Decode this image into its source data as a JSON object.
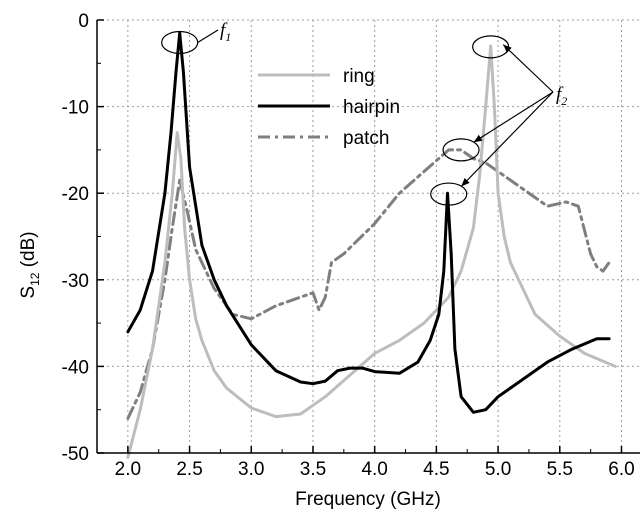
{
  "chart_data": {
    "type": "line",
    "xlabel": "Frequency (GHz)",
    "ylabel_main": "S",
    "ylabel_sub": "12",
    "ylabel_unit": " (dB)",
    "xlim": [
      1.75,
      6.15
    ],
    "ylim": [
      -50,
      0
    ],
    "x_ticks": [
      "2.0",
      "2.5",
      "3.0",
      "3.5",
      "4.0",
      "4.5",
      "5.0",
      "5.5",
      "6.0"
    ],
    "x_tick_values": [
      2.0,
      2.5,
      3.0,
      3.5,
      4.0,
      4.5,
      5.0,
      5.5,
      6.0
    ],
    "y_ticks": [
      "0",
      "-10",
      "-20",
      "-30",
      "-40",
      "-50"
    ],
    "y_tick_values": [
      0,
      -10,
      -20,
      -30,
      -40,
      -50
    ],
    "grid": true,
    "legend_position": "top-center",
    "series": [
      {
        "name": "ring",
        "color": "#bdbdbd",
        "style": "solid",
        "x": [
          2.0,
          2.1,
          2.2,
          2.3,
          2.36,
          2.4,
          2.43,
          2.46,
          2.5,
          2.55,
          2.6,
          2.7,
          2.8,
          3.0,
          3.2,
          3.4,
          3.6,
          3.8,
          4.0,
          4.2,
          4.4,
          4.6,
          4.7,
          4.8,
          4.85,
          4.9,
          4.94,
          4.97,
          5.0,
          5.05,
          5.1,
          5.2,
          5.3,
          5.5,
          5.7,
          5.95
        ],
        "y": [
          -50.5,
          -45,
          -38,
          -28,
          -20,
          -13,
          -16,
          -24,
          -30,
          -34.5,
          -37,
          -40.5,
          -42.5,
          -44.8,
          -45.8,
          -45.5,
          -43.5,
          -41,
          -38.5,
          -37,
          -35,
          -32,
          -29,
          -24,
          -18,
          -10,
          -3,
          -10,
          -20,
          -25,
          -28,
          -31,
          -34,
          -36.5,
          -38.5,
          -40
        ]
      },
      {
        "name": "hairpin",
        "color": "#000000",
        "style": "solid",
        "x": [
          2.0,
          2.1,
          2.2,
          2.3,
          2.35,
          2.39,
          2.42,
          2.45,
          2.5,
          2.6,
          2.7,
          2.8,
          3.0,
          3.2,
          3.4,
          3.5,
          3.6,
          3.7,
          3.8,
          3.9,
          4.0,
          4.2,
          4.35,
          4.45,
          4.52,
          4.56,
          4.59,
          4.62,
          4.65,
          4.7,
          4.8,
          4.9,
          5.0,
          5.2,
          5.4,
          5.6,
          5.8,
          5.9
        ],
        "y": [
          -36,
          -33.5,
          -29,
          -20,
          -13,
          -6,
          -1.5,
          -6,
          -17,
          -26,
          -30,
          -33,
          -37.5,
          -40.5,
          -41.8,
          -42,
          -41.7,
          -40.5,
          -40.2,
          -40.2,
          -40.6,
          -40.8,
          -39.5,
          -37,
          -34,
          -29,
          -20,
          -27,
          -38,
          -43.5,
          -45.3,
          -45,
          -43.5,
          -41.5,
          -39.5,
          -38,
          -36.8,
          -36.8
        ]
      },
      {
        "name": "patch",
        "color": "#7f7f7f",
        "style": "dashdot",
        "x": [
          2.0,
          2.1,
          2.2,
          2.3,
          2.36,
          2.42,
          2.48,
          2.55,
          2.7,
          2.85,
          3.0,
          3.2,
          3.4,
          3.5,
          3.55,
          3.6,
          3.65,
          3.75,
          4.0,
          4.2,
          4.4,
          4.6,
          4.7,
          4.8,
          4.9,
          5.0,
          5.2,
          5.4,
          5.55,
          5.65,
          5.75,
          5.8,
          5.85,
          5.9
        ],
        "y": [
          -46,
          -43,
          -38,
          -30,
          -24,
          -18.5,
          -22,
          -26.5,
          -31,
          -34,
          -34.5,
          -33,
          -32,
          -31.5,
          -33.5,
          -32,
          -28,
          -27,
          -23.5,
          -20,
          -17.5,
          -15,
          -15,
          -16,
          -16.5,
          -17.5,
          -19.5,
          -21.5,
          -21,
          -21.5,
          -27,
          -28.5,
          -29,
          -28
        ]
      }
    ],
    "annotations": [
      {
        "label": "f",
        "sub": "1",
        "circles": [
          [
            2.42,
            -2.6
          ]
        ]
      },
      {
        "label": "f",
        "sub": "2",
        "circles": [
          [
            4.94,
            -3.1
          ],
          [
            4.7,
            -15.0
          ],
          [
            4.6,
            -20.1
          ]
        ]
      }
    ]
  }
}
